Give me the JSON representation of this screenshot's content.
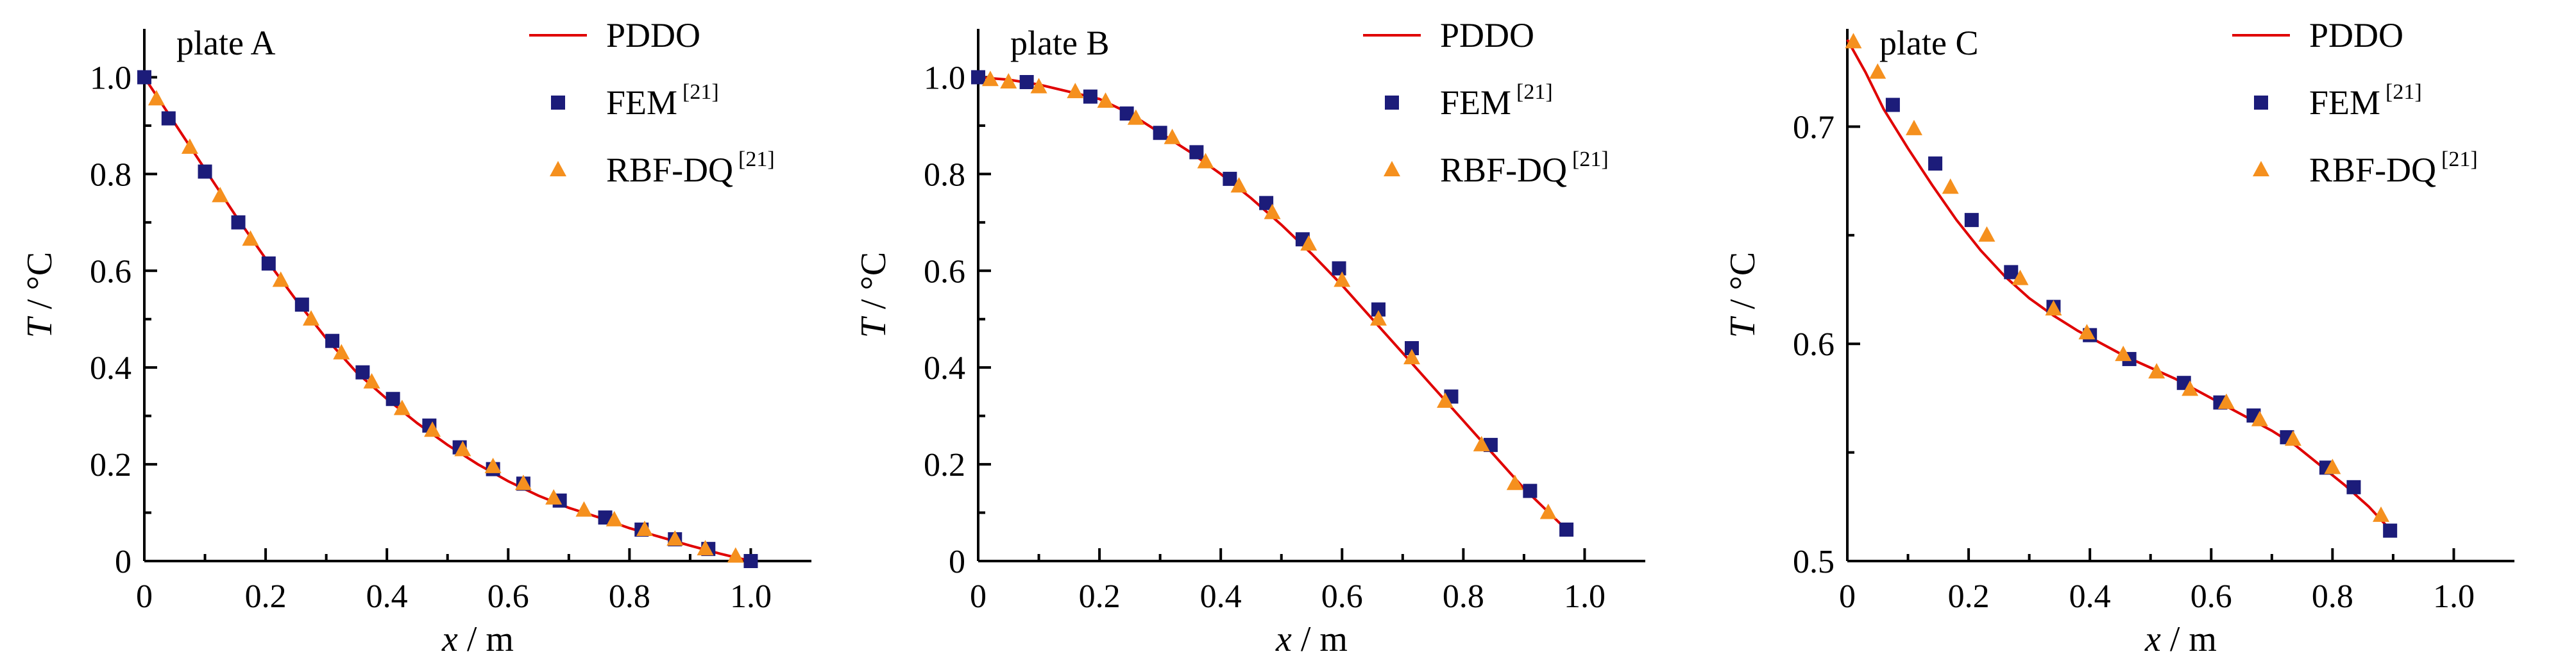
{
  "chart_data": [
    {
      "type": "line",
      "title": "plate A",
      "xlabel": {
        "var": "x",
        "unit": "m"
      },
      "ylabel": {
        "var": "T",
        "unit": "°C"
      },
      "xlim": [
        0,
        1.1
      ],
      "ylim": [
        0,
        1.1
      ],
      "xticks": [
        "0",
        "0.2",
        "0.4",
        "0.6",
        "0.8",
        "1.0"
      ],
      "yticks": [
        "0",
        "0.2",
        "0.4",
        "0.6",
        "0.8",
        "1.0"
      ],
      "xtick_values": [
        0,
        0.2,
        0.4,
        0.6,
        0.8,
        1.0
      ],
      "ytick_values": [
        0,
        0.2,
        0.4,
        0.6,
        0.8,
        1.0
      ],
      "legend_position": "top-right",
      "series": [
        {
          "name": "PDDO",
          "ref": "",
          "kind": "line",
          "color": "#e00000",
          "x": [
            0,
            0.05,
            0.1,
            0.15,
            0.2,
            0.25,
            0.3,
            0.35,
            0.4,
            0.45,
            0.5,
            0.55,
            0.6,
            0.65,
            0.7,
            0.75,
            0.8,
            0.85,
            0.9,
            0.95,
            1.0
          ],
          "y": [
            1.0,
            0.905,
            0.81,
            0.715,
            0.625,
            0.54,
            0.46,
            0.39,
            0.335,
            0.285,
            0.24,
            0.2,
            0.165,
            0.135,
            0.11,
            0.09,
            0.068,
            0.05,
            0.032,
            0.015,
            0.0
          ]
        },
        {
          "name": "FEM",
          "ref": "[21]",
          "kind": "square",
          "color": "#1c1c7a",
          "x": [
            0,
            0.04,
            0.1,
            0.155,
            0.205,
            0.26,
            0.31,
            0.36,
            0.41,
            0.47,
            0.52,
            0.575,
            0.625,
            0.685,
            0.76,
            0.82,
            0.875,
            0.93,
            1.0
          ],
          "y": [
            1.0,
            0.915,
            0.805,
            0.7,
            0.615,
            0.53,
            0.455,
            0.39,
            0.335,
            0.28,
            0.235,
            0.19,
            0.16,
            0.125,
            0.09,
            0.065,
            0.045,
            0.025,
            0.0
          ]
        },
        {
          "name": "RBF-DQ",
          "ref": "[21]",
          "kind": "triangle",
          "color": "#f5901e",
          "x": [
            0.02,
            0.075,
            0.125,
            0.175,
            0.225,
            0.275,
            0.325,
            0.375,
            0.425,
            0.475,
            0.525,
            0.575,
            0.625,
            0.675,
            0.725,
            0.775,
            0.825,
            0.875,
            0.925,
            0.975
          ],
          "y": [
            0.955,
            0.855,
            0.755,
            0.665,
            0.58,
            0.5,
            0.43,
            0.37,
            0.315,
            0.27,
            0.23,
            0.195,
            0.16,
            0.13,
            0.105,
            0.085,
            0.065,
            0.045,
            0.025,
            0.01
          ]
        }
      ]
    },
    {
      "type": "line",
      "title": "plate B",
      "xlabel": {
        "var": "x",
        "unit": "m"
      },
      "ylabel": {
        "var": "T",
        "unit": "°C"
      },
      "xlim": [
        0,
        1.1
      ],
      "ylim": [
        0,
        1.1
      ],
      "xticks": [
        "0",
        "0.2",
        "0.4",
        "0.6",
        "0.8",
        "1.0"
      ],
      "yticks": [
        "0",
        "0.2",
        "0.4",
        "0.6",
        "0.8",
        "1.0"
      ],
      "xtick_values": [
        0,
        0.2,
        0.4,
        0.6,
        0.8,
        1.0
      ],
      "ytick_values": [
        0,
        0.2,
        0.4,
        0.6,
        0.8,
        1.0
      ],
      "legend_position": "top-right",
      "series": [
        {
          "name": "PDDO",
          "ref": "",
          "kind": "line",
          "color": "#e00000",
          "x": [
            0,
            0.05,
            0.1,
            0.15,
            0.2,
            0.25,
            0.3,
            0.35,
            0.4,
            0.45,
            0.5,
            0.55,
            0.6,
            0.65,
            0.7,
            0.75,
            0.8,
            0.85,
            0.9,
            0.97
          ],
          "y": [
            1.0,
            0.995,
            0.985,
            0.97,
            0.955,
            0.925,
            0.885,
            0.845,
            0.8,
            0.75,
            0.695,
            0.635,
            0.57,
            0.5,
            0.43,
            0.36,
            0.29,
            0.22,
            0.15,
            0.065
          ]
        },
        {
          "name": "FEM",
          "ref": "[21]",
          "kind": "square",
          "color": "#1c1c7a",
          "x": [
            0,
            0.08,
            0.185,
            0.245,
            0.3,
            0.36,
            0.415,
            0.475,
            0.535,
            0.595,
            0.66,
            0.715,
            0.78,
            0.845,
            0.91,
            0.97
          ],
          "y": [
            1.0,
            0.99,
            0.96,
            0.925,
            0.885,
            0.845,
            0.79,
            0.74,
            0.665,
            0.605,
            0.52,
            0.44,
            0.34,
            0.24,
            0.145,
            0.065
          ]
        },
        {
          "name": "RBF-DQ",
          "ref": "[21]",
          "kind": "triangle",
          "color": "#f5901e",
          "x": [
            0.02,
            0.05,
            0.1,
            0.16,
            0.21,
            0.26,
            0.32,
            0.375,
            0.43,
            0.485,
            0.545,
            0.6,
            0.66,
            0.715,
            0.77,
            0.83,
            0.885,
            0.94
          ],
          "y": [
            0.995,
            0.99,
            0.98,
            0.97,
            0.95,
            0.915,
            0.875,
            0.825,
            0.775,
            0.72,
            0.655,
            0.58,
            0.5,
            0.42,
            0.33,
            0.24,
            0.16,
            0.1
          ]
        }
      ]
    },
    {
      "type": "line",
      "title": "plate C",
      "xlabel": {
        "var": "x",
        "unit": "m"
      },
      "ylabel": {
        "var": "T",
        "unit": "°C"
      },
      "xlim": [
        0,
        1.1
      ],
      "ylim": [
        0.5,
        0.745
      ],
      "xticks": [
        "0",
        "0.2",
        "0.4",
        "0.6",
        "0.8",
        "1.0"
      ],
      "yticks": [
        "0.5",
        "0.6",
        "0.7"
      ],
      "xtick_values": [
        0,
        0.2,
        0.4,
        0.6,
        0.8,
        1.0
      ],
      "ytick_values": [
        0.5,
        0.6,
        0.7
      ],
      "legend_position": "top-right",
      "series": [
        {
          "name": "PDDO",
          "ref": "",
          "kind": "line",
          "color": "#e00000",
          "x": [
            0.0,
            0.03,
            0.06,
            0.1,
            0.14,
            0.18,
            0.22,
            0.26,
            0.3,
            0.34,
            0.38,
            0.42,
            0.46,
            0.5,
            0.54,
            0.58,
            0.62,
            0.66,
            0.7,
            0.74,
            0.78,
            0.82,
            0.86,
            0.9
          ],
          "y": [
            0.74,
            0.725,
            0.708,
            0.69,
            0.673,
            0.657,
            0.643,
            0.631,
            0.621,
            0.613,
            0.606,
            0.6,
            0.594,
            0.589,
            0.584,
            0.578,
            0.572,
            0.566,
            0.56,
            0.553,
            0.544,
            0.535,
            0.525,
            0.513
          ]
        },
        {
          "name": "FEM",
          "ref": "[21]",
          "kind": "square",
          "color": "#1c1c7a",
          "x": [
            0.075,
            0.145,
            0.205,
            0.27,
            0.34,
            0.4,
            0.465,
            0.555,
            0.615,
            0.67,
            0.725,
            0.79,
            0.835,
            0.895
          ],
          "y": [
            0.71,
            0.683,
            0.657,
            0.633,
            0.617,
            0.604,
            0.593,
            0.582,
            0.573,
            0.567,
            0.557,
            0.543,
            0.534,
            0.514
          ]
        },
        {
          "name": "RBF-DQ",
          "ref": "[21]",
          "kind": "triangle",
          "color": "#f5901e",
          "x": [
            0.01,
            0.05,
            0.11,
            0.17,
            0.23,
            0.285,
            0.34,
            0.395,
            0.455,
            0.51,
            0.565,
            0.625,
            0.68,
            0.735,
            0.8,
            0.88
          ],
          "y": [
            0.739,
            0.725,
            0.699,
            0.672,
            0.65,
            0.63,
            0.616,
            0.605,
            0.595,
            0.587,
            0.579,
            0.573,
            0.565,
            0.556,
            0.543,
            0.521
          ]
        }
      ]
    }
  ]
}
